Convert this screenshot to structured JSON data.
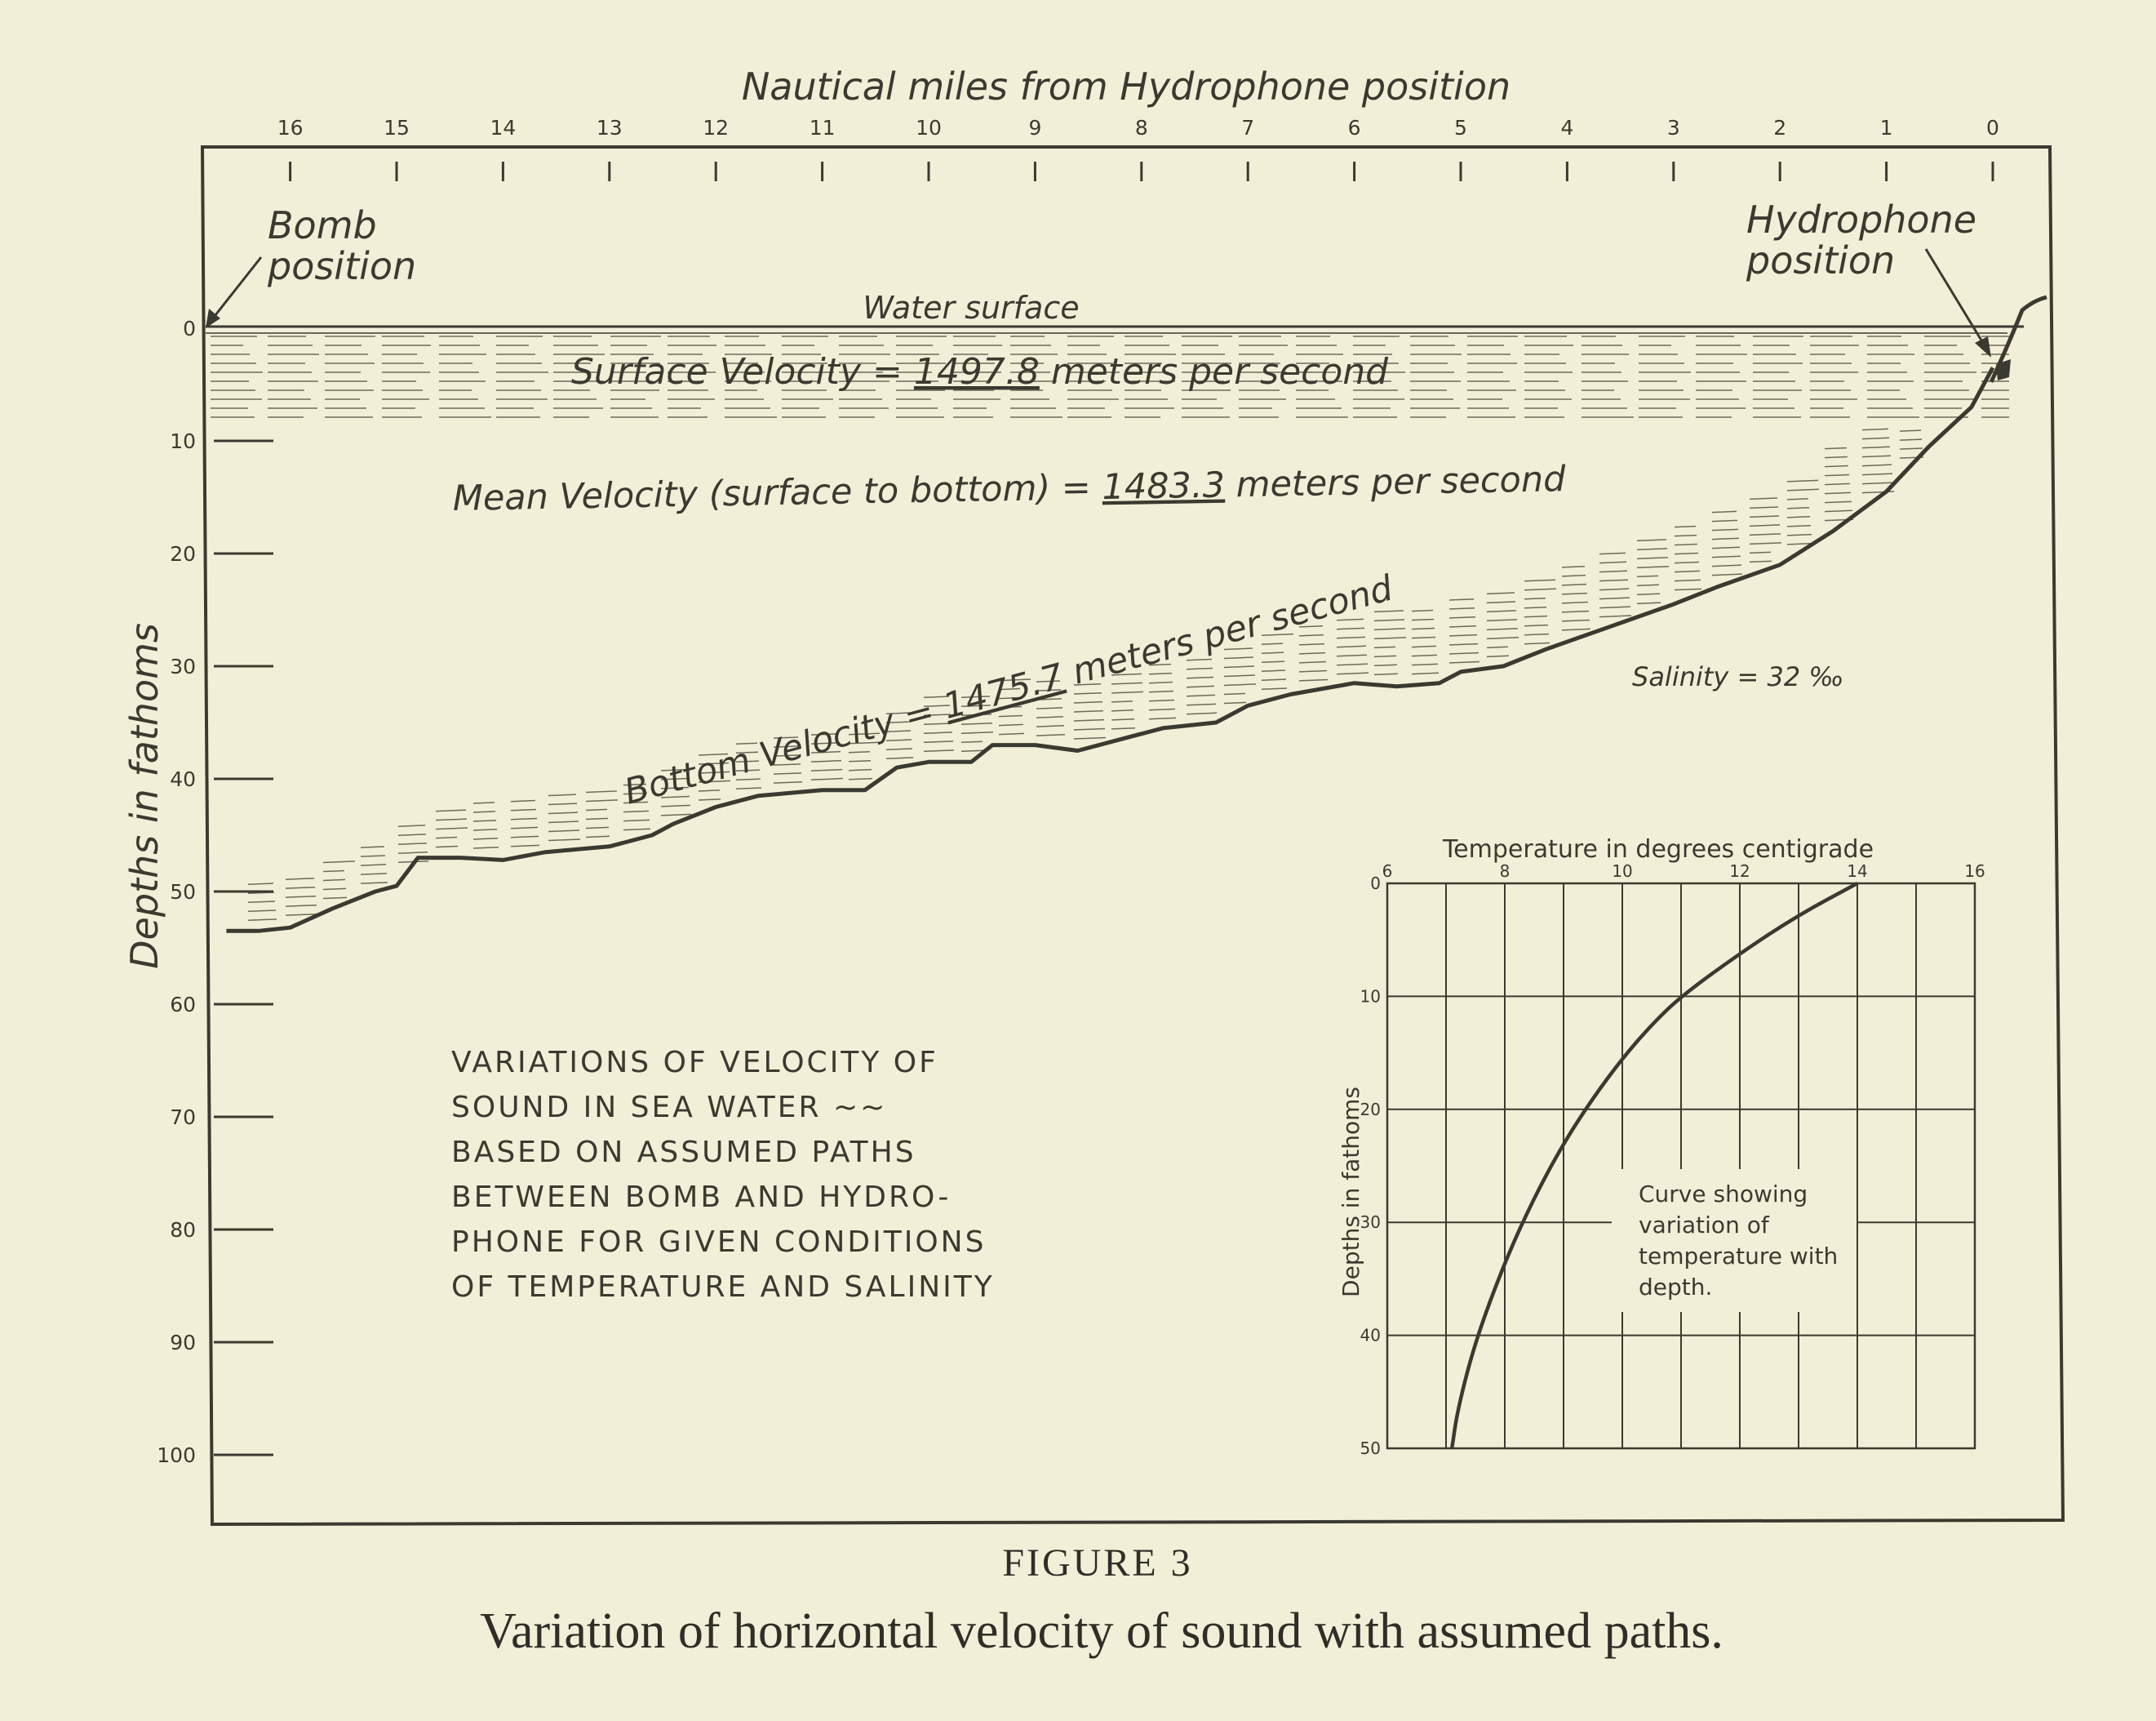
{
  "chart_data": [
    {
      "type": "area",
      "x_axis": {
        "title": "Nautical miles from Hydrophone position",
        "ticks": [
          "16",
          "15",
          "14",
          "13",
          "12",
          "11",
          "10",
          "9",
          "8",
          "7",
          "6",
          "5",
          "4",
          "3",
          "2",
          "1",
          "0"
        ],
        "range": [
          16.6,
          -0.5
        ]
      },
      "y_axis": {
        "title": "Depths in fathoms",
        "ticks": [
          "0",
          "10",
          "20",
          "30",
          "40",
          "50",
          "60",
          "70",
          "80",
          "90",
          "100"
        ],
        "range": [
          0,
          105
        ]
      },
      "annotations": {
        "bomb": "Bomb\nposition",
        "hydrophone": "Hydrophone\nposition",
        "water_surface": "Water surface",
        "surface_velocity": {
          "prefix": "Surface Velocity = ",
          "value": "1497.8",
          "suffix": " meters per second"
        },
        "mean_velocity": {
          "prefix": "Mean Velocity (surface to bottom) = ",
          "value": "1483.3",
          "suffix": " meters per second"
        },
        "bottom_velocity": {
          "prefix": "Bottom Velocity = ",
          "value": "1475.7",
          "suffix": " meters per second"
        },
        "salinity": "Salinity = 32 ‰",
        "description": [
          "VARIATIONS OF VELOCITY OF",
          "SOUND IN SEA WATER ~~",
          "BASED ON ASSUMED PATHS",
          "BETWEEN BOMB AND HYDRO-",
          "PHONE FOR GIVEN CONDITIONS",
          "OF TEMPERATURE AND SALINITY"
        ]
      },
      "sea_bottom_profile": {
        "x_miles": [
          16.6,
          16.3,
          16.0,
          15.6,
          15.2,
          15.0,
          14.8,
          14.4,
          14.0,
          13.6,
          13.0,
          12.6,
          12.4,
          12.0,
          11.6,
          11.0,
          10.6,
          10.3,
          10.0,
          9.6,
          9.4,
          9.0,
          8.6,
          8.2,
          7.8,
          7.3,
          7.0,
          6.6,
          6.0,
          5.6,
          5.2,
          5.0,
          4.6,
          4.2,
          3.6,
          3.0,
          2.6,
          2.0,
          1.5,
          1.0,
          0.6,
          0.2,
          0.0
        ],
        "depth_fathoms": [
          53.5,
          53.5,
          53.2,
          51.5,
          50.0,
          49.5,
          47.0,
          47.0,
          47.2,
          46.5,
          46.0,
          45.0,
          44.0,
          42.5,
          41.5,
          41.0,
          41.0,
          39.0,
          38.5,
          38.5,
          37.0,
          37.0,
          37.5,
          36.5,
          35.5,
          35.0,
          33.5,
          32.5,
          31.5,
          31.8,
          31.5,
          30.5,
          30.0,
          28.5,
          26.5,
          24.5,
          23.0,
          21.0,
          18.0,
          14.5,
          10.5,
          7.0,
          3.5
        ]
      }
    },
    {
      "type": "line",
      "title": "Temperature in degrees centigrade",
      "xlabel": "Temperature in degrees centigrade",
      "ylabel": "Depths in fathoms",
      "x_ticks": [
        "6",
        "8",
        "10",
        "12",
        "14",
        "16"
      ],
      "y_ticks": [
        "0",
        "10",
        "20",
        "30",
        "40",
        "50"
      ],
      "xlim": [
        6,
        16
      ],
      "ylim": [
        0,
        50
      ],
      "grid": true,
      "annotation": "Curve showing\nvariation of\ntemperature with\ndepth.",
      "series": [
        {
          "x": [
            14.0,
            13.0,
            12.0,
            11.0,
            10.5,
            10.0,
            9.5,
            9.0,
            8.5,
            8.0,
            7.5,
            7.2,
            7.1
          ],
          "y": [
            0,
            2.8,
            6.2,
            10.0,
            12.5,
            15.5,
            19.0,
            23.0,
            27.8,
            33.5,
            40.5,
            46.5,
            50.0
          ]
        }
      ]
    }
  ],
  "caption": {
    "figure": "FIGURE 3",
    "text": "Variation of horizontal velocity of sound with assumed paths."
  }
}
